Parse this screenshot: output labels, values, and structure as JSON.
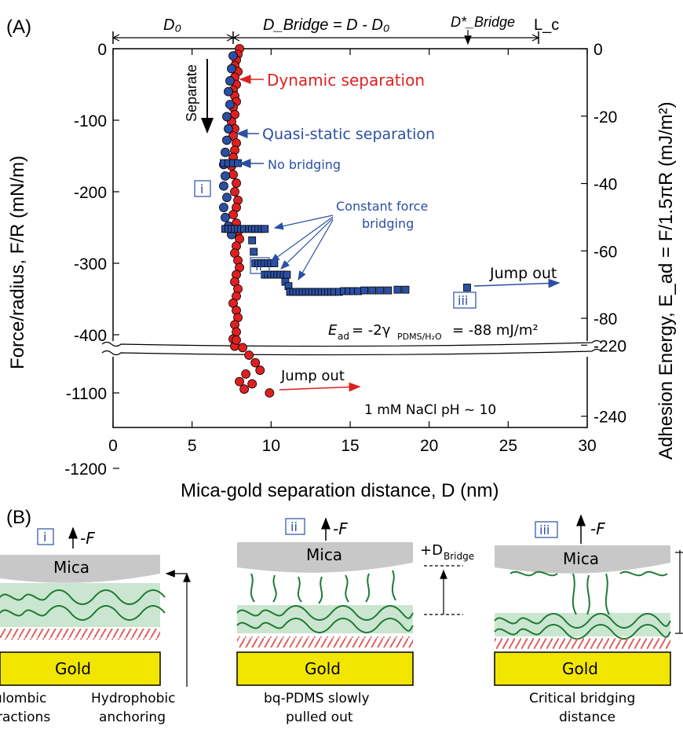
{
  "panel_a_label": "(A)",
  "panel_b_label": "(B)",
  "chart_data": {
    "type": "scatter",
    "xlabel": "Mica-gold separation distance, D (nm)",
    "ylabel_left": "Force/radius, F/R (mN/m)",
    "ylabel_right": "Adhesion Energy, E_ad = F/1.5πR (mJ/m²)",
    "xlim": [
      0,
      30
    ],
    "x_ticks": [
      "0",
      "5",
      "10",
      "15",
      "20",
      "25",
      "30"
    ],
    "y_ticks_left": [
      "0",
      "-100",
      "-200",
      "-300",
      "-400",
      "-1100",
      "-1200"
    ],
    "y_ticks_right": [
      "0",
      "-20",
      "-40",
      "-60",
      "-80",
      "-220",
      "-240"
    ],
    "axis_break": "between -420 and -1050 mN/m",
    "top_labels": {
      "d0": "D₀",
      "dbridge": "D_Bridge = D - D₀",
      "dbridge_star": "D*_Bridge",
      "lc": "L_c"
    },
    "series": [
      {
        "name": "Dynamic separation",
        "color": "#e02020",
        "marker": "circle",
        "points": [
          [
            8.0,
            0
          ],
          [
            7.9,
            -8
          ],
          [
            7.8,
            -16
          ],
          [
            7.7,
            -24
          ],
          [
            7.9,
            -32
          ],
          [
            7.7,
            -40
          ],
          [
            7.8,
            -50
          ],
          [
            7.6,
            -58
          ],
          [
            7.7,
            -66
          ],
          [
            7.8,
            -74
          ],
          [
            7.6,
            -82
          ],
          [
            7.7,
            -92
          ],
          [
            7.5,
            -102
          ],
          [
            7.7,
            -112
          ],
          [
            7.6,
            -122
          ],
          [
            7.8,
            -132
          ],
          [
            7.7,
            -142
          ],
          [
            7.6,
            -152
          ],
          [
            7.5,
            -164
          ],
          [
            7.6,
            -176
          ],
          [
            7.8,
            -188
          ],
          [
            7.7,
            -200
          ],
          [
            7.9,
            -212
          ],
          [
            7.8,
            -222
          ],
          [
            7.6,
            -232
          ],
          [
            7.8,
            -244
          ],
          [
            7.9,
            -256
          ],
          [
            8.0,
            -266
          ],
          [
            7.8,
            -276
          ],
          [
            7.7,
            -286
          ],
          [
            7.9,
            -296
          ],
          [
            8.0,
            -306
          ],
          [
            7.8,
            -316
          ],
          [
            7.7,
            -326
          ],
          [
            7.9,
            -336
          ],
          [
            7.8,
            -346
          ],
          [
            7.6,
            -356
          ],
          [
            7.8,
            -366
          ],
          [
            7.9,
            -376
          ],
          [
            7.7,
            -386
          ],
          [
            7.8,
            -396
          ],
          [
            7.6,
            -406
          ],
          [
            7.7,
            -416
          ],
          [
            7.8,
            -1030
          ],
          [
            8.2,
            -1040
          ],
          [
            8.6,
            -1050
          ],
          [
            9.0,
            -1060
          ],
          [
            9.3,
            -1070
          ],
          [
            8.4,
            -1075
          ],
          [
            8.0,
            -1085
          ],
          [
            8.8,
            -1088
          ],
          [
            8.3,
            -1095
          ],
          [
            9.9,
            -1100
          ]
        ]
      },
      {
        "name": "Quasi-static separation",
        "color": "#2b4fa3",
        "marker": "circle",
        "points": [
          [
            7.6,
            -10
          ],
          [
            7.5,
            -28
          ],
          [
            7.4,
            -45
          ],
          [
            7.3,
            -60
          ],
          [
            7.4,
            -78
          ],
          [
            7.2,
            -95
          ],
          [
            7.3,
            -112
          ],
          [
            7.2,
            -128
          ],
          [
            7.1,
            -145
          ],
          [
            7.0,
            -162
          ],
          [
            7.1,
            -178
          ],
          [
            7.0,
            -192
          ],
          [
            7.2,
            -208
          ],
          [
            7.0,
            -222
          ],
          [
            7.1,
            -236
          ],
          [
            7.3,
            -248
          ],
          [
            7.5,
            -260
          ]
        ]
      },
      {
        "name": "No bridging",
        "color": "#2b4fa3",
        "marker": "square",
        "points": [
          [
            7.0,
            -160
          ],
          [
            7.3,
            -160
          ],
          [
            7.6,
            -160
          ],
          [
            7.9,
            -160
          ],
          [
            7.1,
            -252
          ],
          [
            7.3,
            -252
          ],
          [
            7.5,
            -252
          ],
          [
            7.7,
            -252
          ],
          [
            7.9,
            -252
          ],
          [
            8.1,
            -252
          ],
          [
            8.3,
            -252
          ]
        ]
      },
      {
        "name": "Constant force bridging",
        "color": "#2b4fa3",
        "marker": "square",
        "points": [
          [
            8.6,
            -252
          ],
          [
            8.8,
            -252
          ],
          [
            9.0,
            -252
          ],
          [
            9.2,
            -252
          ],
          [
            9.4,
            -252
          ],
          [
            9.6,
            -252
          ],
          [
            8.8,
            -268
          ],
          [
            8.9,
            -284
          ],
          [
            9.0,
            -300
          ],
          [
            9.2,
            -300
          ],
          [
            9.4,
            -300
          ],
          [
            9.6,
            -300
          ],
          [
            9.8,
            -300
          ],
          [
            10.0,
            -300
          ],
          [
            10.2,
            -300
          ],
          [
            9.6,
            -316
          ],
          [
            9.8,
            -316
          ],
          [
            10.0,
            -316
          ],
          [
            10.2,
            -316
          ],
          [
            10.4,
            -316
          ],
          [
            10.6,
            -316
          ],
          [
            10.8,
            -316
          ],
          [
            11.0,
            -316
          ],
          [
            10.9,
            -326
          ],
          [
            11.1,
            -332
          ],
          [
            11.2,
            -340
          ],
          [
            11.4,
            -340
          ],
          [
            11.6,
            -340
          ],
          [
            11.8,
            -340
          ],
          [
            12.0,
            -340
          ],
          [
            12.2,
            -340
          ],
          [
            12.4,
            -340
          ],
          [
            12.6,
            -340
          ],
          [
            12.8,
            -340
          ],
          [
            13.0,
            -340
          ],
          [
            13.2,
            -340
          ],
          [
            13.4,
            -340
          ],
          [
            13.6,
            -340
          ],
          [
            13.8,
            -340
          ],
          [
            14.0,
            -340
          ],
          [
            14.3,
            -340
          ],
          [
            14.6,
            -339
          ],
          [
            14.9,
            -339
          ],
          [
            15.2,
            -339
          ],
          [
            15.5,
            -339
          ],
          [
            15.9,
            -338
          ],
          [
            16.4,
            -338
          ],
          [
            16.9,
            -338
          ],
          [
            17.4,
            -338
          ],
          [
            18.0,
            -337
          ],
          [
            18.5,
            -337
          ],
          [
            22.4,
            -334
          ]
        ]
      }
    ],
    "annotations": {
      "separate": "Separate",
      "dynamic": "Dynamic separation",
      "quasi": "Quasi-static separation",
      "nobridge": "No bridging",
      "cfb1": "Constant force",
      "cfb2": "bridging",
      "jump_out": "Jump out",
      "ead_lhs": "E",
      "ead_sub": "ad",
      "ead_mid": "= -2γ",
      "ead_sub2": "PDMS/H₂O",
      "ead_rhs": "= -88 mJ/m²",
      "salt": "1 mM NaCl pH ~ 10",
      "roman_i": "i",
      "roman_ii": "ii",
      "roman_iii": "iii"
    }
  },
  "panel_b": {
    "force": "-F",
    "mica": "Mica",
    "gold": "Gold",
    "dbridge_plus": "+D",
    "dbridge_sub": "Bridge",
    "caption1a": "ulombic",
    "caption1b": "ractions",
    "caption2a": "Hydrophobic",
    "caption2b": "anchoring",
    "caption3a": "bq-PDMS slowly",
    "caption3b": "pulled out",
    "caption4a": "Critical bridging",
    "caption4b": "distance"
  }
}
